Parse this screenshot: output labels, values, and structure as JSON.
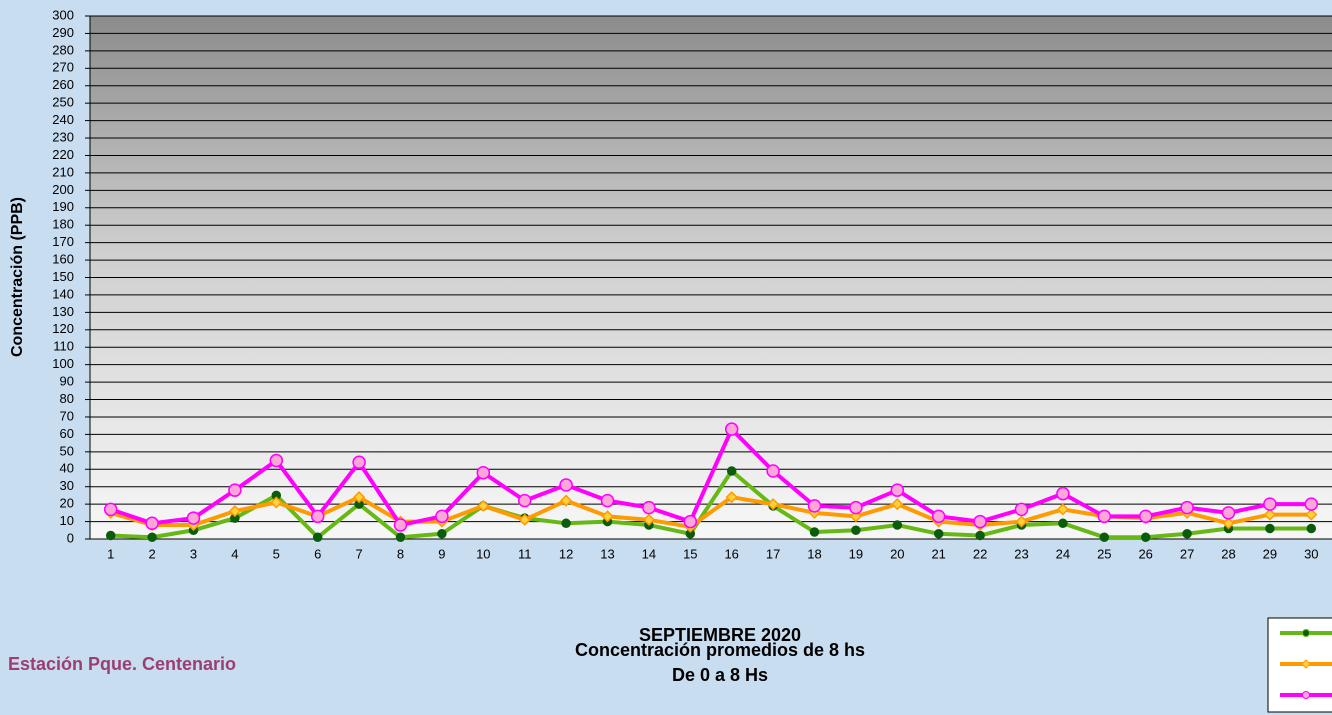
{
  "chart_data": {
    "type": "line",
    "title_lines": [
      "SEPTIEMBRE 2020",
      "Concentración promedios de 8 hs",
      "De 0 a 8 Hs"
    ],
    "station": "Estación Pque. Centenario",
    "y_label": "Concentración  (PPB)",
    "categories": [
      "1",
      "2",
      "3",
      "4",
      "5",
      "6",
      "7",
      "8",
      "9",
      "10",
      "11",
      "12",
      "13",
      "14",
      "15",
      "16",
      "17",
      "18",
      "19",
      "20",
      "21",
      "22",
      "23",
      "24",
      "25",
      "26",
      "27",
      "28",
      "29",
      "30"
    ],
    "series": [
      {
        "color": "#66b814",
        "marker": "circle",
        "marker_color": "#0b5d0b",
        "values": [
          2,
          1,
          5,
          12,
          25,
          1,
          20,
          1,
          3,
          19,
          12,
          9,
          10,
          8,
          3,
          39,
          19,
          4,
          5,
          8,
          3,
          2,
          8,
          9,
          1,
          1,
          3,
          6,
          6,
          6
        ]
      },
      {
        "color": "#ff9a00",
        "marker": "diamond",
        "marker_color": "#ffd23c",
        "values": [
          15,
          8,
          8,
          16,
          21,
          13,
          24,
          10,
          10,
          19,
          11,
          22,
          13,
          11,
          7,
          24,
          20,
          15,
          13,
          20,
          10,
          8,
          10,
          17,
          13,
          12,
          15,
          9,
          14,
          14
        ]
      },
      {
        "color": "#ff00ff",
        "marker": "circle",
        "marker_color": "#ffa6d8",
        "values": [
          17,
          9,
          12,
          28,
          45,
          13,
          44,
          8,
          13,
          38,
          22,
          31,
          22,
          18,
          10,
          63,
          39,
          19,
          18,
          28,
          13,
          10,
          17,
          26,
          13,
          13,
          18,
          15,
          20,
          20
        ]
      }
    ],
    "ylim": [
      0,
      300
    ],
    "yticks": [
      0,
      10,
      20,
      30,
      40,
      50,
      60,
      70,
      80,
      90,
      100,
      110,
      120,
      130,
      140,
      150,
      160,
      170,
      180,
      190,
      200,
      210,
      220,
      230,
      240,
      250,
      260,
      270,
      280,
      290,
      300
    ],
    "grid": true
  }
}
